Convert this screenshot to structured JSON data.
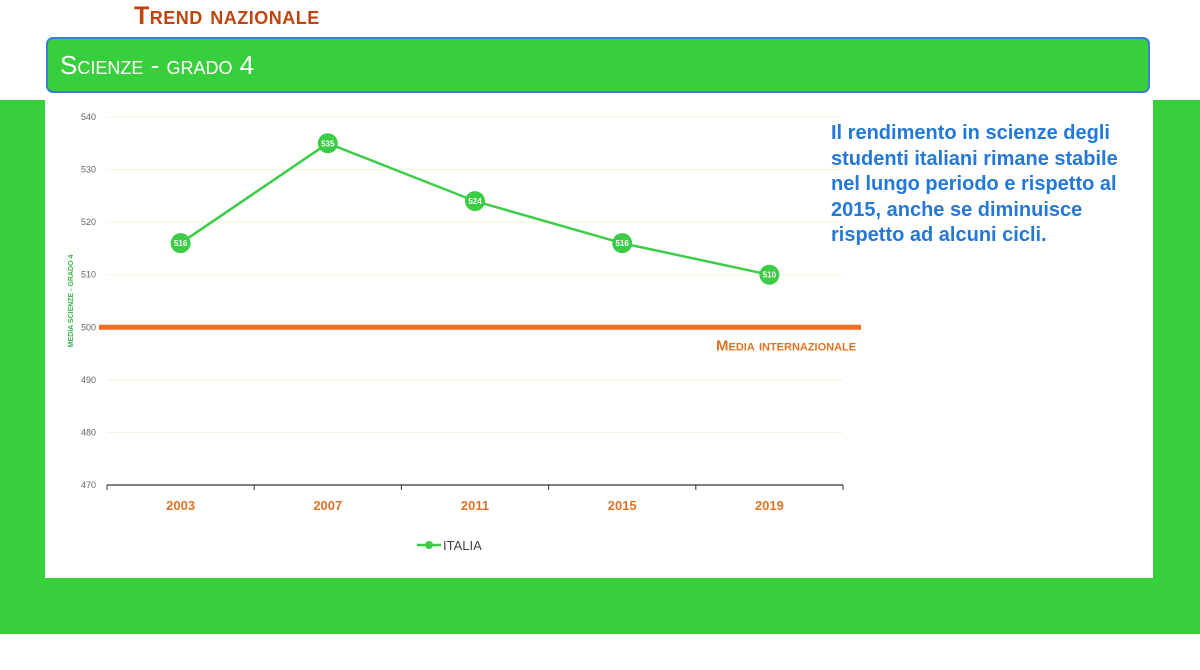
{
  "header": {
    "title": "Trend nazionale",
    "subject": "Scienze - grado 4"
  },
  "commentary": "Il rendimento in scienze degli studenti italiani rimane stabile nel lungo periodo e rispetto al 2015, anche se diminuisce rispetto ad alcuni cicli.",
  "colors": {
    "series": "#3ccc45",
    "reference": "#f26d21",
    "accent_text": "#2378d8",
    "title": "#c0440e",
    "band": "#37cf3b"
  },
  "chart_data": {
    "type": "line",
    "title": "",
    "xlabel": "",
    "ylabel": "MEDIA SCIENZE - GRADO 4",
    "categories": [
      "2003",
      "2007",
      "2011",
      "2015",
      "2019"
    ],
    "series": [
      {
        "name": "ITALIA",
        "values": [
          516,
          535,
          524,
          516,
          510
        ]
      }
    ],
    "reference_line": {
      "label": "Media internazionale",
      "value": 500
    },
    "ylim": [
      470,
      540
    ],
    "yticks": [
      470,
      480,
      490,
      500,
      510,
      520,
      530,
      540
    ],
    "grid": true,
    "legend": "bottom"
  }
}
